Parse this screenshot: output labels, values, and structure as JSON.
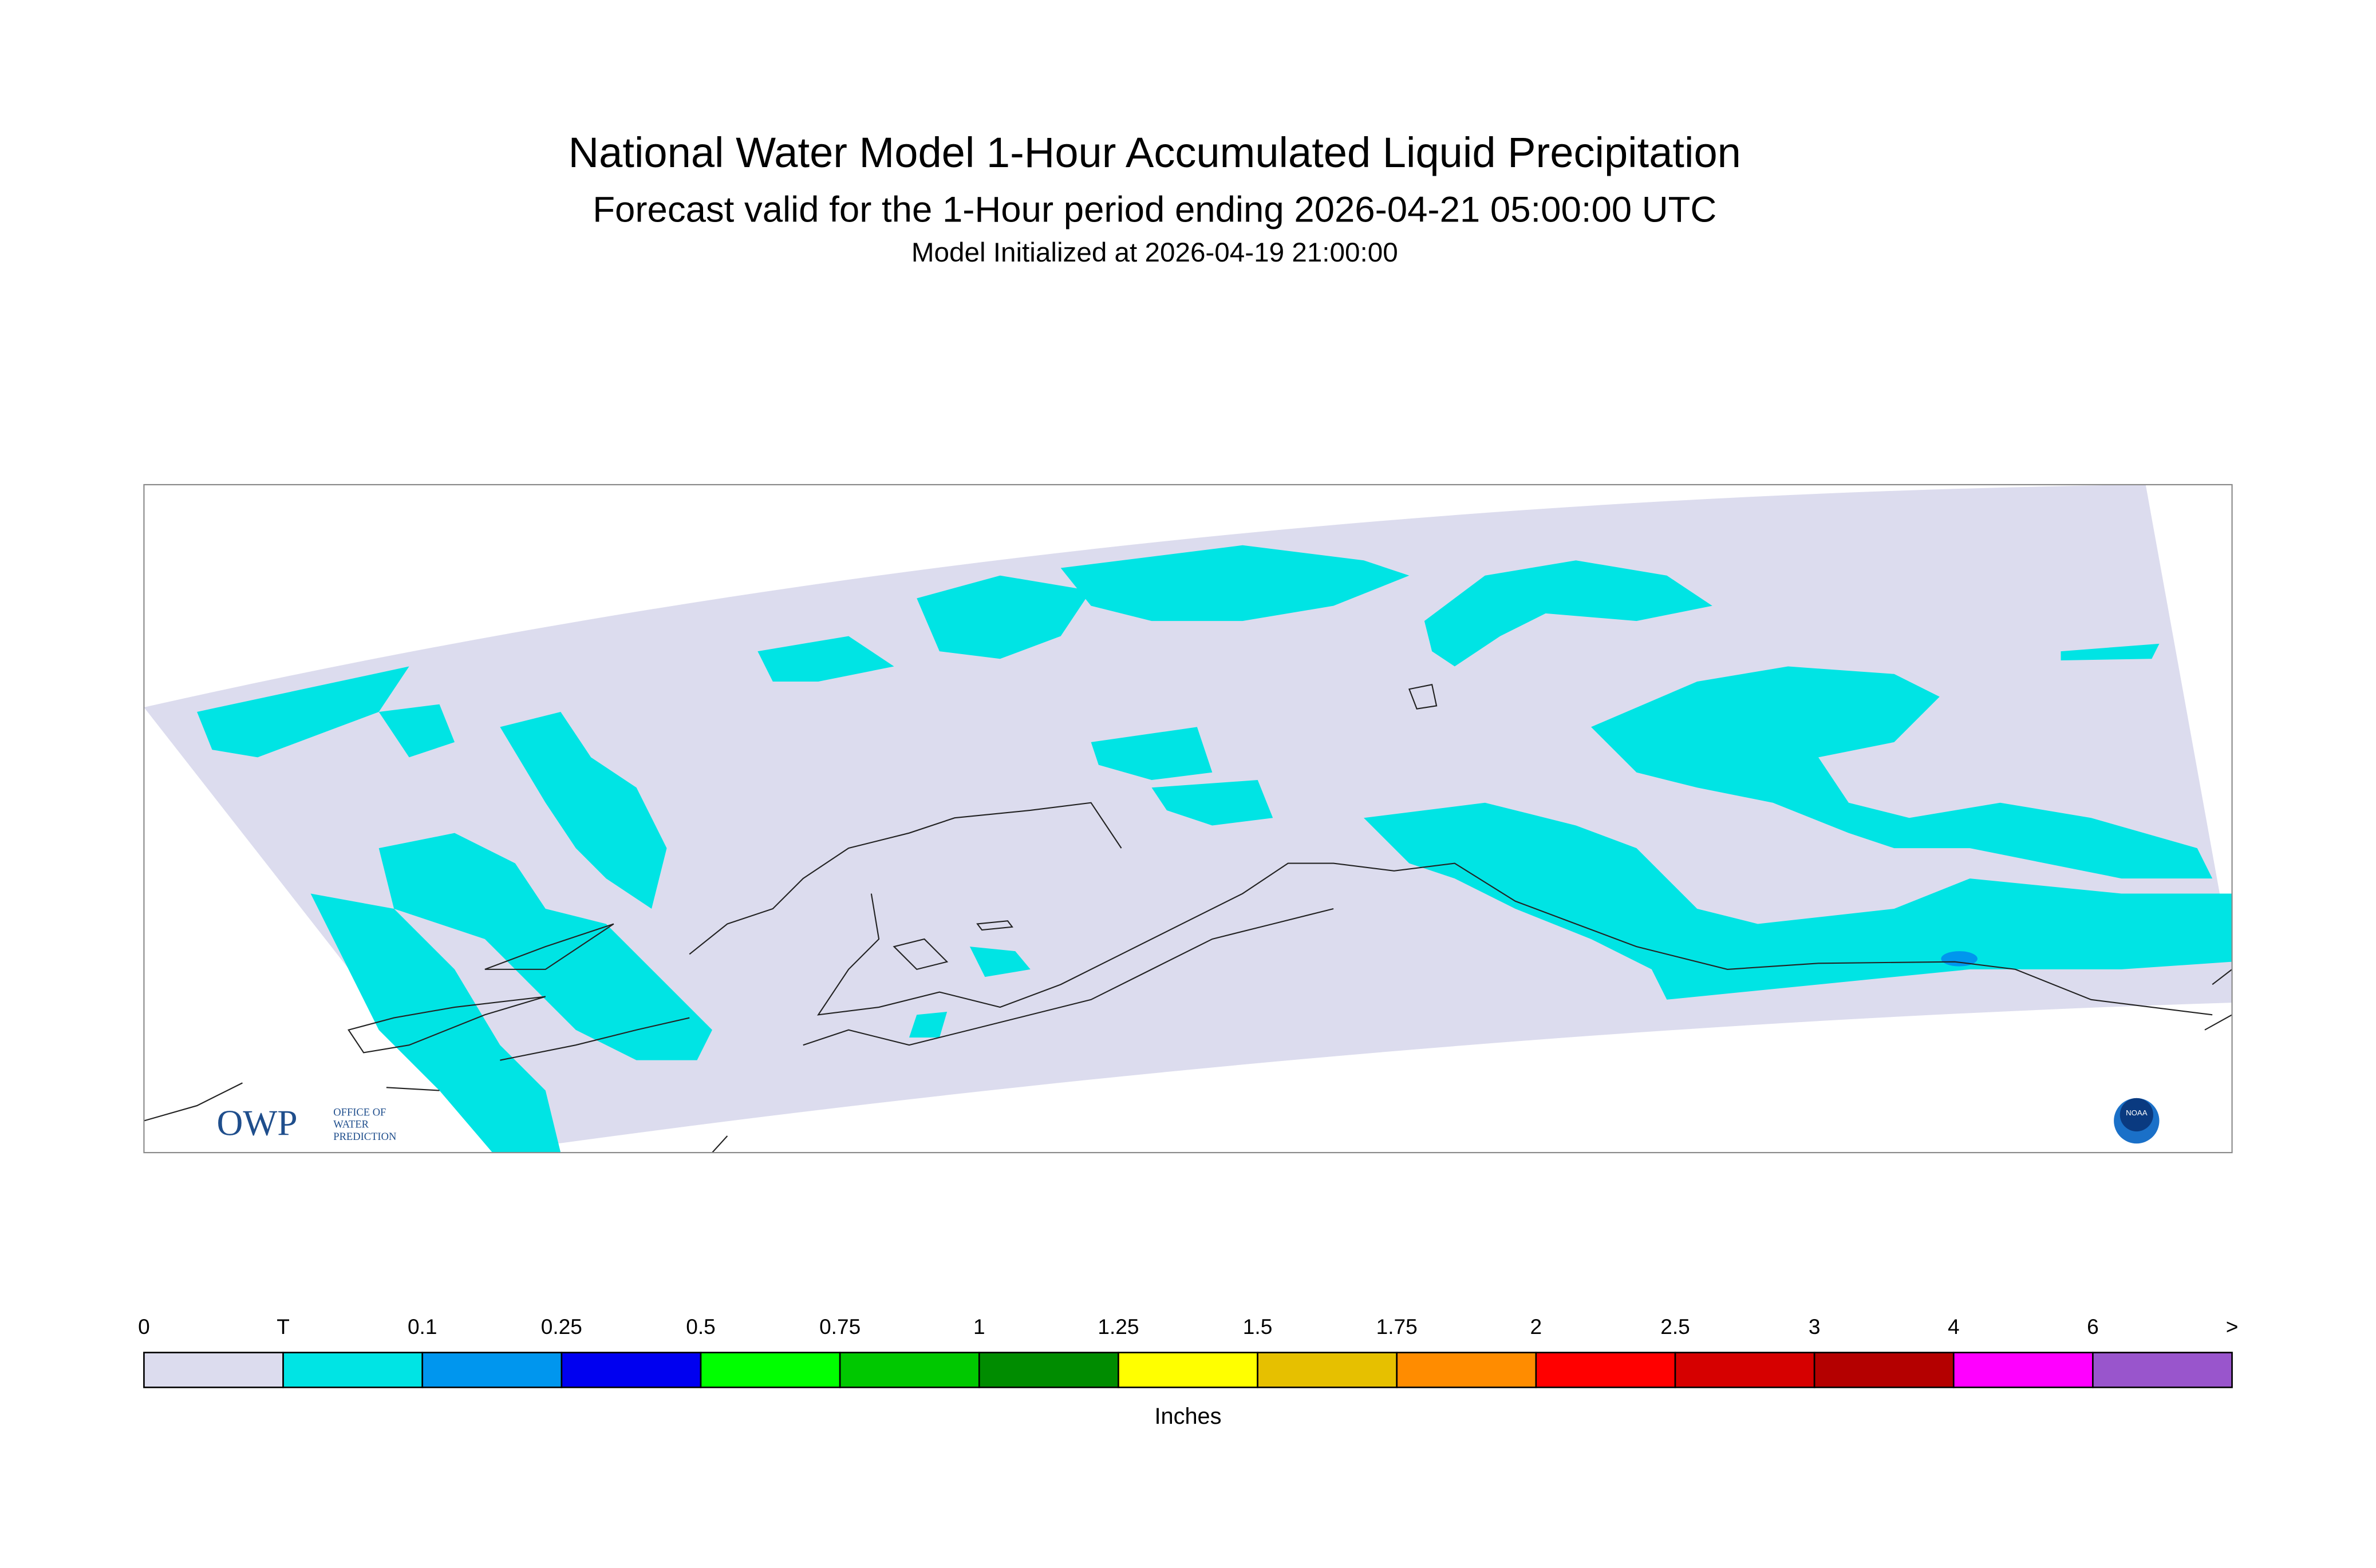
{
  "header": {
    "title": "National Water Model 1-Hour Accumulated Liquid Precipitation",
    "subtitle": "Forecast valid for the 1-Hour period ending 2026-04-21 05:00:00 UTC",
    "init": "Model Initialized at 2026-04-19 21:00:00"
  },
  "logo": {
    "name": "OWP",
    "lines": [
      "OFFICE OF",
      "WATER",
      "PREDICTION"
    ],
    "agency": "NOAA"
  },
  "legend": {
    "labels": [
      "0",
      "T",
      "0.1",
      "0.25",
      "0.5",
      "0.75",
      "1",
      "1.25",
      "1.5",
      "1.75",
      "2",
      "2.5",
      "3",
      "4",
      "6",
      ">"
    ],
    "colors": [
      "#dcdcee",
      "#00e4e4",
      "#0096ee",
      "#0000f0",
      "#00ff00",
      "#00c800",
      "#008c00",
      "#ffff00",
      "#e6c000",
      "#ff8c00",
      "#ff0000",
      "#d60000",
      "#b40000",
      "#ff00ff",
      "#9955cc"
    ],
    "units": "Inches"
  }
}
